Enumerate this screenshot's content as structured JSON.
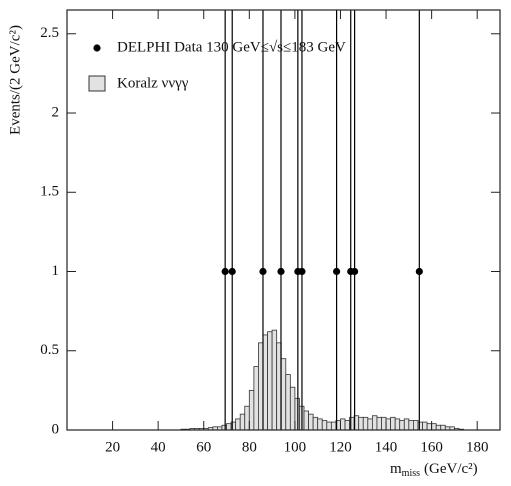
{
  "chart_data": {
    "type": "histogram",
    "y_label": "Events/(2 GeV/c²)",
    "x_label": "m",
    "x_label_sub": "miss",
    "x_label_unit": "(GeV/c²)",
    "xlim": [
      0,
      190
    ],
    "ylim": [
      0,
      2.65
    ],
    "xticks": [
      20,
      40,
      60,
      80,
      100,
      120,
      140,
      160,
      180
    ],
    "yticks": [
      0,
      0.5,
      1,
      1.5,
      2,
      2.5
    ],
    "bins": [
      40,
      42,
      44,
      46,
      48,
      50,
      52,
      54,
      56,
      58,
      60,
      62,
      64,
      66,
      68,
      70,
      72,
      74,
      76,
      78,
      80,
      82,
      84,
      86,
      88,
      90,
      92,
      94,
      96,
      98,
      100,
      102,
      104,
      106,
      108,
      110,
      112,
      114,
      116,
      118,
      120,
      122,
      124,
      126,
      128,
      130,
      132,
      134,
      136,
      138,
      140,
      142,
      144,
      146,
      148,
      150,
      152,
      154,
      156,
      158,
      160,
      162,
      164,
      166,
      168,
      170,
      172,
      174,
      176
    ],
    "series": [
      {
        "name": "DELPHI Data 130 GeV≤√s≤183 GeV",
        "kind": "points",
        "color": "#000000",
        "x": [
          69.4,
          72.5,
          86,
          93.9,
          101.3,
          103.1,
          118.3,
          124.5,
          126.2,
          154.6
        ],
        "values": [
          1,
          1,
          1,
          1,
          1,
          1,
          1,
          1,
          1,
          1
        ],
        "yerr_low": [
          1,
          1,
          1,
          1,
          1,
          1,
          1,
          1,
          1,
          1
        ],
        "yerr_high": [
          1.84,
          1.84,
          1.84,
          1.84,
          1.84,
          1.84,
          1.84,
          1.84,
          1.84,
          1.84
        ]
      },
      {
        "name": "Koralz ννγγ",
        "kind": "histogram",
        "color": "#e2e2e2",
        "values": [
          0,
          0,
          0,
          0,
          0,
          0.005,
          0.005,
          0.01,
          0.01,
          0.01,
          0.01,
          0.015,
          0.02,
          0.02,
          0.03,
          0.04,
          0.05,
          0.07,
          0.1,
          0.15,
          0.25,
          0.4,
          0.55,
          0.6,
          0.62,
          0.63,
          0.55,
          0.45,
          0.35,
          0.27,
          0.2,
          0.15,
          0.12,
          0.1,
          0.08,
          0.07,
          0.06,
          0.05,
          0.05,
          0.06,
          0.07,
          0.06,
          0.08,
          0.09,
          0.08,
          0.08,
          0.07,
          0.09,
          0.08,
          0.08,
          0.07,
          0.08,
          0.07,
          0.06,
          0.07,
          0.06,
          0.06,
          0.05,
          0.05,
          0.04,
          0.04,
          0.03,
          0.03,
          0.02,
          0.02,
          0.01,
          0.005,
          0
        ]
      }
    ]
  }
}
